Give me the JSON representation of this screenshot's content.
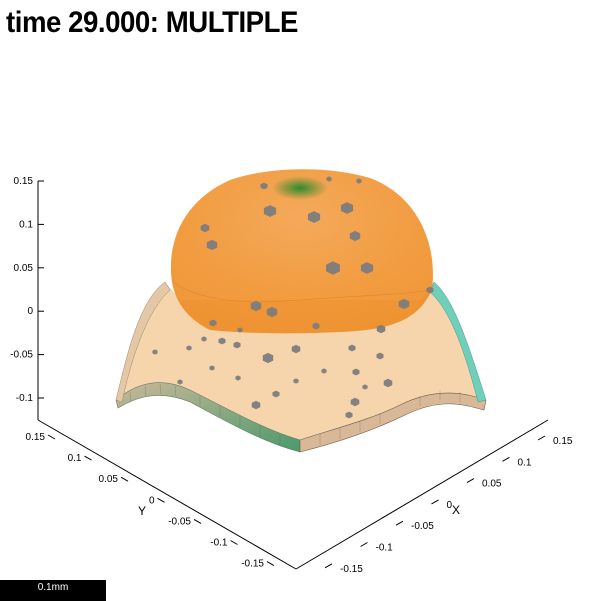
{
  "title": "time 29.000: MULTIPLE",
  "scale_bar_label": "0.1mm",
  "axes": {
    "x_label": "X",
    "y_label": "Y",
    "z_ticks": [
      "0.15",
      "0.1",
      "0.05",
      "0",
      "-0.05",
      "-0.1"
    ],
    "y_ticks": [
      "0.15",
      "0.1",
      "0.05",
      "0",
      "-0.05",
      "-0.1",
      "-0.15"
    ],
    "x_ticks": [
      "0.15",
      "0.1",
      "0.05",
      "0",
      "-0.05",
      "-0.1",
      "-0.15"
    ]
  },
  "colors": {
    "dome": "#f0902a",
    "cell_sheet": "#f6d3a8",
    "rim_green": "#2f8a4a",
    "rim_teal": "#5fcdb8",
    "nuclei": "#7c7c80",
    "apex_green": "#2e8b2e"
  }
}
